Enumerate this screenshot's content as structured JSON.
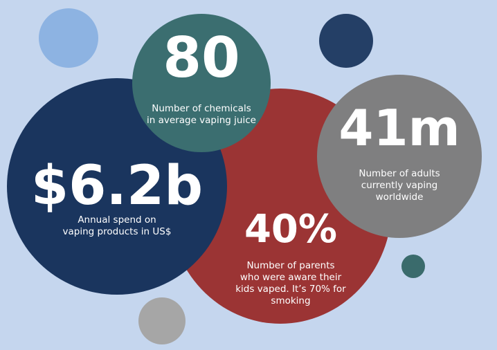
{
  "colors": {
    "background": "#c5d6ee",
    "light_blue": "#8db3e2",
    "dark_navy": "#243f66",
    "teal": "#3b6e70",
    "navy": "#1a355e",
    "red": "#9b3434",
    "gray": "#7f7f80",
    "light_gray": "#a6a6a6",
    "small_teal": "#3a6b6c"
  },
  "stats": {
    "chemicals": {
      "value": "80",
      "desc": [
        "Number of chemicals",
        "in average vaping juice"
      ]
    },
    "adults": {
      "value": "41m",
      "desc": [
        "Number of adults",
        "currently vaping",
        "worldwide"
      ]
    },
    "spend": {
      "value": "$6.2b",
      "desc": [
        "Annual spend on",
        "vaping products  in US$"
      ]
    },
    "parents": {
      "value": "40%",
      "desc": [
        "Number of parents",
        "who were aware their",
        "kids vaped. It’s 70% for",
        "smoking"
      ]
    }
  }
}
